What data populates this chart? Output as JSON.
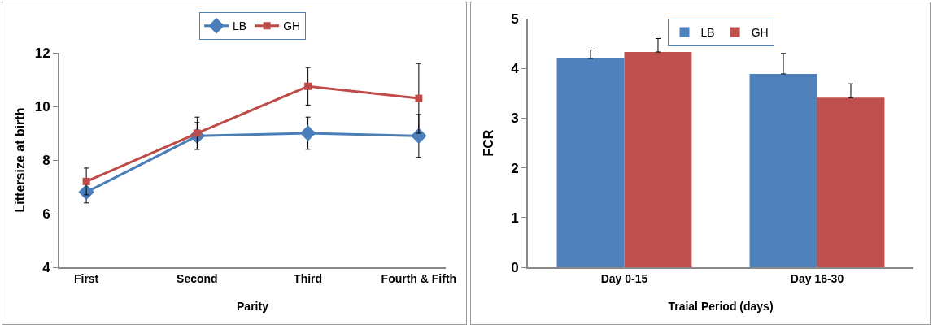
{
  "chart_data": [
    {
      "type": "line",
      "xlabel": "Parity",
      "ylabel": "Littersize at birth",
      "categories": [
        "First",
        "Second",
        "Third",
        "Fourth & Fifth"
      ],
      "ylim": [
        4,
        12
      ],
      "yticks": [
        4,
        6,
        8,
        10,
        12
      ],
      "grid": false,
      "legend": "top",
      "series": [
        {
          "name": "LB",
          "color": "#4a7ebb",
          "marker": "diamond",
          "values": [
            6.8,
            8.9,
            9.0,
            8.9
          ],
          "errors": [
            0.4,
            0.5,
            0.6,
            0.8
          ]
        },
        {
          "name": "GH",
          "color": "#be4b48",
          "marker": "square",
          "values": [
            7.2,
            9.0,
            10.75,
            10.3
          ],
          "errors": [
            0.5,
            0.6,
            0.7,
            1.3
          ]
        }
      ]
    },
    {
      "type": "bar",
      "xlabel": "Traial Period (days)",
      "ylabel": "FCR",
      "categories": [
        "Day 0-15",
        "Day 16-30"
      ],
      "ylim": [
        0,
        5
      ],
      "yticks": [
        0,
        1,
        2,
        3,
        4,
        5
      ],
      "grid": false,
      "legend": "top center",
      "series": [
        {
          "name": "LB",
          "color": "#4f81bd",
          "values": [
            4.2,
            3.89
          ],
          "errors": [
            [
              4.2,
              4.37
            ],
            [
              3.89,
              4.3
            ]
          ]
        },
        {
          "name": "GH",
          "color": "#c0504d",
          "values": [
            4.33,
            3.41
          ],
          "errors": [
            [
              4.33,
              4.6
            ],
            [
              3.41,
              3.69
            ]
          ]
        }
      ]
    }
  ]
}
